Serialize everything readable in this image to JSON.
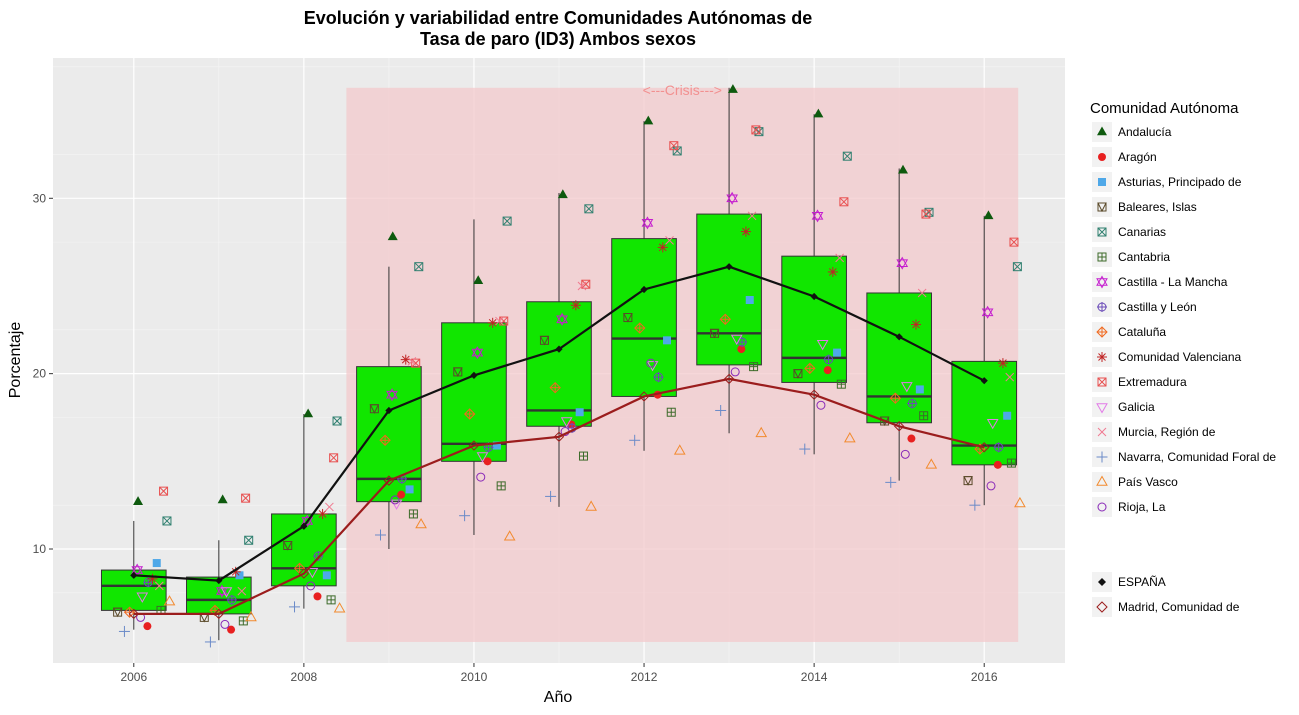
{
  "chart_data": {
    "type": "boxplot",
    "title_line1": "Evolución y variabilidad entre Comunidades Autónomas de",
    "title_line2": "Tasa de paro (ID3) Ambos sexos",
    "xlabel": "Año",
    "ylabel": "Porcentaje",
    "x_ticks": [
      "2006",
      "2008",
      "2010",
      "2012",
      "2014",
      "2016"
    ],
    "y_ticks": [
      "10",
      "20",
      "30"
    ],
    "ylim": [
      3.5,
      38.0
    ],
    "xlim": [
      2005.05,
      2016.95
    ],
    "grid": true,
    "legend_position": "right",
    "legend_title": "Comunidad Autónoma",
    "crisis": {
      "label": "<---Crisis--->",
      "x_start": 2008.5,
      "x_end": 2016.4,
      "y_min": 4.7,
      "y_max": 36.3,
      "color": "#f3c9cc"
    },
    "box_color": "#11e600",
    "espana_color": "#111111",
    "madrid_color": "#9b1d1d",
    "years": [
      2006,
      2007,
      2008,
      2009,
      2010,
      2011,
      2012,
      2013,
      2014,
      2015,
      2016
    ],
    "boxes": [
      {
        "year": 2006,
        "whisker_low": 5.4,
        "q1": 6.5,
        "median": 7.9,
        "q3": 8.8,
        "whisker_high": 11.6
      },
      {
        "year": 2007,
        "whisker_low": 4.8,
        "q1": 6.3,
        "median": 7.1,
        "q3": 8.4,
        "whisker_high": 10.5
      },
      {
        "year": 2008,
        "whisker_low": 6.6,
        "q1": 7.9,
        "median": 8.9,
        "q3": 12.0,
        "whisker_high": 17.7
      },
      {
        "year": 2009,
        "whisker_low": 10.0,
        "q1": 12.7,
        "median": 14.0,
        "q3": 20.4,
        "whisker_high": 26.1
      },
      {
        "year": 2010,
        "whisker_low": 10.8,
        "q1": 15.0,
        "median": 16.0,
        "q3": 22.9,
        "whisker_high": 28.8
      },
      {
        "year": 2011,
        "whisker_low": 12.4,
        "q1": 17.0,
        "median": 17.9,
        "q3": 24.1,
        "whisker_high": 30.3
      },
      {
        "year": 2012,
        "whisker_low": 15.6,
        "q1": 18.7,
        "median": 22.0,
        "q3": 27.7,
        "whisker_high": 34.4
      },
      {
        "year": 2013,
        "whisker_low": 16.6,
        "q1": 20.5,
        "median": 22.3,
        "q3": 29.1,
        "whisker_high": 36.3
      },
      {
        "year": 2014,
        "whisker_low": 15.4,
        "q1": 19.5,
        "median": 20.9,
        "q3": 26.7,
        "whisker_high": 34.8
      },
      {
        "year": 2015,
        "whisker_low": 13.9,
        "q1": 17.2,
        "median": 18.7,
        "q3": 24.6,
        "whisker_high": 31.7
      },
      {
        "year": 2016,
        "whisker_low": 12.5,
        "q1": 14.8,
        "median": 15.9,
        "q3": 20.7,
        "whisker_high": 29.0
      }
    ],
    "espana": [
      8.5,
      8.2,
      11.3,
      17.9,
      19.9,
      21.4,
      24.8,
      26.1,
      24.4,
      22.1,
      19.6
    ],
    "madrid": [
      6.3,
      6.3,
      8.6,
      13.9,
      15.9,
      16.4,
      18.7,
      19.7,
      18.8,
      17.0,
      15.8
    ],
    "series": [
      {
        "name": "Andalucía",
        "shape": "tri",
        "color": "#0e5a0e",
        "values": [
          12.7,
          12.8,
          17.7,
          27.8,
          25.3,
          30.2,
          34.4,
          36.2,
          34.8,
          31.6,
          29.0
        ]
      },
      {
        "name": "Aragón",
        "shape": "circle",
        "color": "#e82020",
        "values": [
          5.6,
          5.4,
          7.3,
          13.1,
          15.0,
          17.1,
          18.8,
          21.4,
          20.2,
          16.3,
          14.8
        ]
      },
      {
        "name": "Asturias, Principado de",
        "shape": "square",
        "color": "#4fa8e8",
        "values": [
          9.2,
          8.5,
          8.5,
          13.4,
          15.9,
          17.8,
          21.9,
          24.2,
          21.2,
          19.1,
          17.6
        ]
      },
      {
        "name": "Baleares, Islas",
        "shape": "sq_tri",
        "color": "#5b4a2a",
        "values": [
          6.4,
          6.1,
          10.2,
          18.0,
          20.1,
          21.9,
          23.2,
          22.3,
          20.0,
          17.3,
          13.9
        ]
      },
      {
        "name": "Canarias",
        "shape": "sq_x",
        "color": "#2f7f6f",
        "values": [
          11.6,
          10.5,
          17.3,
          26.1,
          28.7,
          29.4,
          32.7,
          33.8,
          32.4,
          29.2,
          26.1
        ]
      },
      {
        "name": "Cantabria",
        "shape": "sq_plus",
        "color": "#3d6b2a",
        "values": [
          6.5,
          5.9,
          7.1,
          12.0,
          13.6,
          15.3,
          17.8,
          20.4,
          19.4,
          17.6,
          14.9
        ]
      },
      {
        "name": "Castilla - La Mancha",
        "shape": "star_david",
        "color": "#c51ecf",
        "values": [
          8.8,
          7.6,
          11.6,
          18.8,
          21.2,
          23.1,
          28.6,
          30.0,
          29.0,
          26.3,
          23.5
        ]
      },
      {
        "name": "Castilla y León",
        "shape": "circle_plus",
        "color": "#6a4ab8",
        "values": [
          8.1,
          7.1,
          9.6,
          14.0,
          15.8,
          16.9,
          19.8,
          21.8,
          20.8,
          18.3,
          15.8
        ]
      },
      {
        "name": "Cataluña",
        "shape": "diamond_plus",
        "color": "#f06a20",
        "values": [
          6.4,
          6.5,
          8.9,
          16.2,
          17.7,
          19.2,
          22.6,
          23.1,
          20.3,
          18.6,
          15.7
        ]
      },
      {
        "name": "Comunidad Valenciana",
        "shape": "asterisk",
        "color": "#c02525",
        "values": [
          8.3,
          8.7,
          12.0,
          20.8,
          22.9,
          23.9,
          27.2,
          28.1,
          25.8,
          22.8,
          20.6
        ]
      },
      {
        "name": "Extremadura",
        "shape": "sq_x",
        "color": "#e85050",
        "values": [
          13.3,
          12.9,
          15.2,
          20.6,
          23.0,
          25.1,
          33.0,
          33.9,
          29.8,
          29.1,
          27.5
        ]
      },
      {
        "name": "Galicia",
        "shape": "tri_down",
        "color": "#e27ae8",
        "values": [
          7.3,
          7.6,
          8.7,
          12.6,
          15.3,
          17.3,
          20.5,
          22.0,
          21.7,
          19.3,
          17.2
        ]
      },
      {
        "name": "Murcia, Región de",
        "shape": "x",
        "color": "#f07a90",
        "values": [
          7.9,
          7.6,
          12.4,
          20.7,
          23.0,
          25.0,
          27.6,
          29.0,
          26.6,
          24.6,
          19.8
        ]
      },
      {
        "name": "Navarra, Comunidad Foral de",
        "shape": "plus",
        "color": "#6a8ac8",
        "values": [
          5.3,
          4.7,
          6.7,
          10.8,
          11.9,
          13.0,
          16.2,
          17.9,
          15.7,
          13.8,
          12.5
        ]
      },
      {
        "name": "País Vasco",
        "shape": "tri_open",
        "color": "#f28a2e",
        "values": [
          7.0,
          6.1,
          6.6,
          11.4,
          10.7,
          12.4,
          15.6,
          16.6,
          16.3,
          14.8,
          12.6
        ]
      },
      {
        "name": "Rioja, La",
        "shape": "circle_open",
        "color": "#8a2ab8",
        "values": [
          6.1,
          5.7,
          7.9,
          12.8,
          14.1,
          16.7,
          20.6,
          20.1,
          18.2,
          15.4,
          13.6
        ]
      }
    ],
    "legend_extra": [
      {
        "name": "ESPAÑA",
        "shape": "diamond_fill",
        "color": "#111111"
      },
      {
        "name": "Madrid, Comunidad de",
        "shape": "diamond_open",
        "color": "#9b1d1d"
      }
    ]
  }
}
